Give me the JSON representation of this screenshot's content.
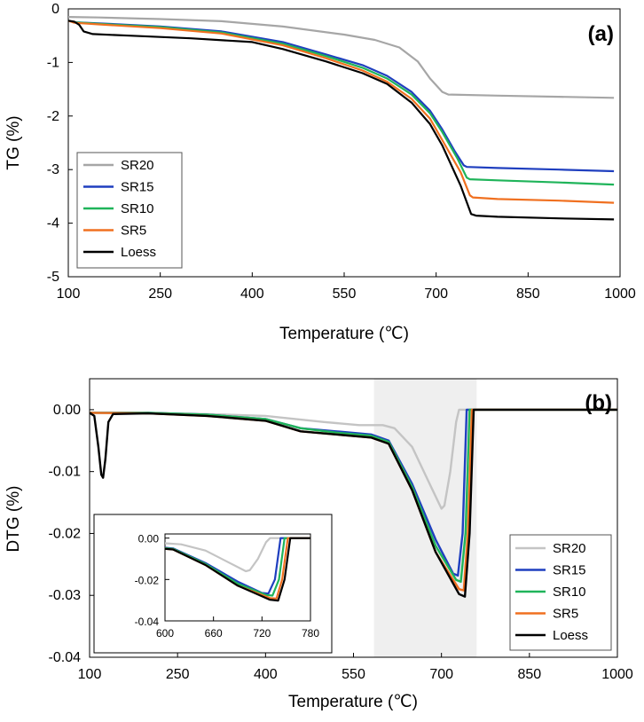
{
  "chart_data": [
    {
      "panel": "(a)",
      "type": "line",
      "title": "",
      "xlabel": "Temperature (℃)",
      "ylabel": "TG (%)",
      "xlim": [
        100,
        1000
      ],
      "ylim": [
        -5,
        0
      ],
      "xticks": [
        "100",
        "250",
        "400",
        "550",
        "700",
        "850",
        "1000"
      ],
      "yticks": [
        "0",
        "-1",
        "-2",
        "-3",
        "-4",
        "-5"
      ],
      "legend": "bottom-left",
      "grid": false,
      "series": [
        {
          "name": "SR20",
          "color": "#a6a6a6",
          "x": [
            100,
            150,
            250,
            350,
            450,
            550,
            600,
            640,
            670,
            690,
            710,
            720,
            800,
            900,
            990
          ],
          "y": [
            -0.15,
            -0.16,
            -0.19,
            -0.23,
            -0.33,
            -0.48,
            -0.58,
            -0.72,
            -0.98,
            -1.3,
            -1.55,
            -1.6,
            -1.62,
            -1.64,
            -1.66
          ]
        },
        {
          "name": "SR15",
          "color": "#1f3fbf",
          "x": [
            100,
            110,
            150,
            250,
            350,
            450,
            520,
            580,
            620,
            660,
            690,
            710,
            730,
            745,
            750,
            800,
            900,
            990
          ],
          "y": [
            -0.22,
            -0.25,
            -0.27,
            -0.33,
            -0.42,
            -0.62,
            -0.85,
            -1.05,
            -1.25,
            -1.55,
            -1.9,
            -2.25,
            -2.65,
            -2.92,
            -2.95,
            -2.97,
            -3.0,
            -3.03
          ]
        },
        {
          "name": "SR10",
          "color": "#1fb45a",
          "x": [
            100,
            110,
            150,
            250,
            350,
            450,
            520,
            580,
            620,
            660,
            690,
            710,
            735,
            750,
            755,
            800,
            900,
            990
          ],
          "y": [
            -0.22,
            -0.25,
            -0.28,
            -0.34,
            -0.44,
            -0.65,
            -0.88,
            -1.1,
            -1.3,
            -1.6,
            -1.95,
            -2.3,
            -2.8,
            -3.15,
            -3.18,
            -3.2,
            -3.24,
            -3.28
          ]
        },
        {
          "name": "SR5",
          "color": "#f07020",
          "x": [
            100,
            110,
            150,
            250,
            350,
            450,
            520,
            580,
            620,
            660,
            690,
            710,
            740,
            755,
            760,
            800,
            900,
            990
          ],
          "y": [
            -0.22,
            -0.26,
            -0.29,
            -0.36,
            -0.46,
            -0.68,
            -0.92,
            -1.15,
            -1.36,
            -1.68,
            -2.05,
            -2.45,
            -3.05,
            -3.48,
            -3.52,
            -3.55,
            -3.58,
            -3.62
          ]
        },
        {
          "name": "Loess",
          "color": "#000000",
          "x": [
            100,
            110,
            118,
            125,
            140,
            200,
            300,
            400,
            450,
            520,
            580,
            620,
            660,
            690,
            710,
            740,
            757,
            765,
            800,
            900,
            990
          ],
          "y": [
            -0.22,
            -0.24,
            -0.3,
            -0.42,
            -0.47,
            -0.5,
            -0.55,
            -0.62,
            -0.75,
            -0.98,
            -1.2,
            -1.4,
            -1.75,
            -2.15,
            -2.55,
            -3.3,
            -3.83,
            -3.86,
            -3.88,
            -3.91,
            -3.93
          ]
        }
      ]
    },
    {
      "panel": "(b)",
      "type": "line",
      "title": "",
      "xlabel": "Temperature (℃)",
      "ylabel": "DTG (%)",
      "xlim": [
        100,
        1000
      ],
      "ylim": [
        -0.04,
        0.005
      ],
      "xticks": [
        "100",
        "250",
        "400",
        "550",
        "700",
        "850",
        "1000"
      ],
      "yticks": [
        "0.00",
        "-0.01",
        "-0.02",
        "-0.03",
        "-0.04"
      ],
      "legend": "bottom-right",
      "grid": false,
      "shaded_region": [
        585,
        760
      ],
      "series": [
        {
          "name": "SR20",
          "color": "#c4c4c4",
          "x": [
            100,
            200,
            300,
            400,
            500,
            560,
            600,
            620,
            650,
            680,
            700,
            705,
            715,
            725,
            730,
            760,
            850,
            1000
          ],
          "y": [
            -0.0005,
            -0.0005,
            -0.0007,
            -0.001,
            -0.002,
            -0.0025,
            -0.0025,
            -0.003,
            -0.006,
            -0.012,
            -0.016,
            -0.0155,
            -0.01,
            -0.002,
            0,
            0,
            0,
            0
          ]
        },
        {
          "name": "SR15",
          "color": "#1f3fbf",
          "x": [
            100,
            200,
            300,
            400,
            460,
            520,
            580,
            610,
            650,
            690,
            720,
            728,
            736,
            743,
            760,
            850,
            1000
          ],
          "y": [
            -0.0005,
            -0.0005,
            -0.0008,
            -0.0015,
            -0.003,
            -0.0035,
            -0.004,
            -0.005,
            -0.012,
            -0.021,
            -0.0265,
            -0.0268,
            -0.02,
            0,
            0,
            0,
            0
          ]
        },
        {
          "name": "SR10",
          "color": "#1fb45a",
          "x": [
            100,
            200,
            300,
            400,
            460,
            520,
            580,
            610,
            650,
            690,
            725,
            733,
            741,
            748,
            760,
            850,
            1000
          ],
          "y": [
            -0.0005,
            -0.0005,
            -0.0008,
            -0.0015,
            -0.003,
            -0.0037,
            -0.0042,
            -0.0052,
            -0.0125,
            -0.022,
            -0.0275,
            -0.0278,
            -0.02,
            0,
            0,
            0,
            0
          ]
        },
        {
          "name": "SR5",
          "color": "#f07020",
          "x": [
            100,
            200,
            300,
            400,
            460,
            520,
            580,
            610,
            650,
            690,
            730,
            738,
            745,
            752,
            760,
            850,
            1000
          ],
          "y": [
            -0.0005,
            -0.0006,
            -0.001,
            -0.0018,
            -0.0035,
            -0.004,
            -0.0045,
            -0.0055,
            -0.013,
            -0.023,
            -0.029,
            -0.0292,
            -0.02,
            0,
            0,
            0,
            0
          ]
        },
        {
          "name": "Loess",
          "color": "#000000",
          "x": [
            100,
            108,
            115,
            120,
            123,
            127,
            132,
            140,
            200,
            300,
            400,
            460,
            520,
            580,
            610,
            650,
            690,
            730,
            740,
            748,
            755,
            760,
            850,
            1000
          ],
          "y": [
            -0.0005,
            -0.001,
            -0.006,
            -0.0105,
            -0.011,
            -0.008,
            -0.002,
            -0.0007,
            -0.0006,
            -0.001,
            -0.0018,
            -0.0035,
            -0.004,
            -0.0045,
            -0.0055,
            -0.013,
            -0.023,
            -0.0298,
            -0.0302,
            -0.02,
            0,
            0,
            0,
            0
          ]
        }
      ],
      "inset": {
        "xlim": [
          600,
          780
        ],
        "ylim": [
          -0.04,
          0.002
        ],
        "xticks": [
          "600",
          "660",
          "720",
          "780"
        ],
        "yticks": [
          "0.00",
          "-0.02",
          "-0.04"
        ]
      }
    }
  ]
}
